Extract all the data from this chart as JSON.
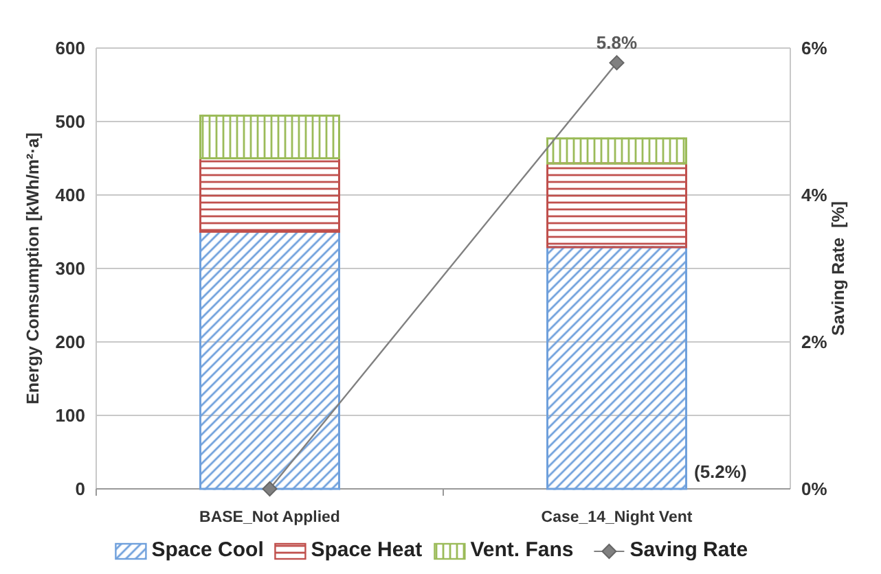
{
  "chart_data": {
    "type": "bar",
    "stacked": true,
    "categories": [
      "BASE_Not Applied",
      "Case_14_Night Vent"
    ],
    "ylabel": "Energy Comsumption [kWh/m²·a]",
    "y2label": "Saving Rate  [%]",
    "ylim": [
      0,
      600
    ],
    "yticks": [
      0,
      100,
      200,
      300,
      400,
      500,
      600
    ],
    "y2lim": [
      0,
      6
    ],
    "y2ticks": [
      {
        "value": 0,
        "label": "0%"
      },
      {
        "value": 2,
        "label": "2%"
      },
      {
        "value": 4,
        "label": "4%"
      },
      {
        "value": 6,
        "label": "6%"
      }
    ],
    "grid": "y",
    "legend": "bottom",
    "series": [
      {
        "name": "Space Cool",
        "color": "#6fa0dc",
        "values": [
          350,
          329
        ]
      },
      {
        "name": "Space Heat",
        "color": "#c0504d",
        "values": [
          100,
          114
        ]
      },
      {
        "name": "Vent. Fans",
        "color": "#9bbb59",
        "values": [
          58,
          34
        ]
      },
      {
        "name": "Saving Rate",
        "type": "line",
        "axis": "y2",
        "color": "#808080",
        "marker": "diamond",
        "values": [
          0,
          5.8
        ],
        "value_labels": [
          null,
          "5.8%"
        ]
      }
    ],
    "annotations": [
      "(5.2%)"
    ]
  }
}
